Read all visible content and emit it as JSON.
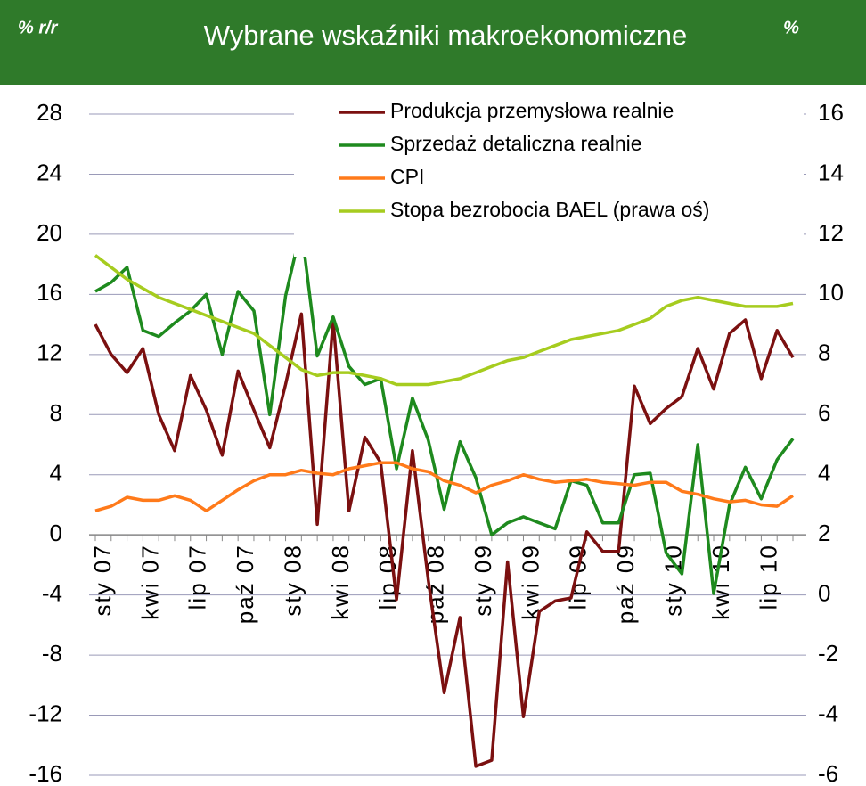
{
  "chart_data": {
    "type": "line",
    "title": "Wybrane wskaźniki makroekonomiczne",
    "ylabel": "% r/r",
    "y2label": "%",
    "categories": [
      "sty 07",
      null,
      null,
      "kwi 07",
      null,
      null,
      "lip 07",
      null,
      null,
      "paź 07",
      null,
      null,
      "sty 08",
      null,
      null,
      "kwi 08",
      null,
      null,
      "lip 08",
      null,
      null,
      "paź 08",
      null,
      null,
      "sty 09",
      null,
      null,
      "kwi 09",
      null,
      null,
      "lip 09",
      null,
      null,
      "paź 09",
      null,
      null,
      "sty 10",
      null,
      null,
      "kwi 10",
      null,
      null,
      "lip 10",
      null,
      null
    ],
    "series": [
      {
        "name": "Produkcja przemysłowa realnie",
        "color": "#7b1010",
        "values": [
          14,
          12,
          10.8,
          12.4,
          8,
          5.6,
          10.6,
          8.3,
          5.3,
          10.9,
          8.3,
          5.8,
          10,
          14.7,
          0.7,
          14.3,
          1.6,
          6.5,
          4.8,
          -4.3,
          5.6,
          -3,
          -10.5,
          -5.5,
          -15.4,
          -15,
          -1.8,
          -12.1,
          -5.1,
          -4.4,
          -4.2,
          0.2,
          -1.1,
          -1.1,
          9.9,
          7.4,
          8.4,
          9.2,
          12.4,
          9.7,
          13.4,
          14.3,
          10.4,
          13.6,
          11.8
        ]
      },
      {
        "name": "Sprzedaż detaliczna realnie",
        "color": "#1e8a1e",
        "values": [
          16.2,
          16.8,
          17.8,
          13.6,
          13.2,
          14.1,
          14.9,
          16,
          12,
          16.2,
          14.9,
          8,
          15.9,
          20.4,
          11.9,
          14.5,
          11.2,
          10,
          10.4,
          4.4,
          9.1,
          6.3,
          1.7,
          6.2,
          3.8,
          0,
          0.8,
          1.2,
          0.8,
          0.4,
          3.6,
          3.3,
          0.8,
          0.8,
          4,
          4.1,
          -1.2,
          -2.6,
          6,
          -3.9,
          2,
          4.5,
          2.4,
          5,
          6.4
        ]
      },
      {
        "name": "CPI",
        "color": "#ff7a1a",
        "values": [
          1.6,
          1.9,
          2.5,
          2.3,
          2.3,
          2.6,
          2.3,
          1.6,
          2.3,
          3.0,
          3.6,
          4.0,
          4.0,
          4.3,
          4.1,
          4.0,
          4.4,
          4.6,
          4.8,
          4.8,
          4.4,
          4.2,
          3.6,
          3.3,
          2.8,
          3.3,
          3.6,
          4.0,
          3.7,
          3.5,
          3.6,
          3.7,
          3.5,
          3.4,
          3.3,
          3.5,
          3.5,
          2.9,
          2.7,
          2.4,
          2.2,
          2.3,
          2.0,
          1.9,
          2.6
        ]
      },
      {
        "name": "Stopa bezrobocia BAEL (prawa oś)",
        "color": "#a6cc1f",
        "axis": "y2",
        "values": [
          11.3,
          10.9,
          10.5,
          10.2,
          9.9,
          9.7,
          9.5,
          9.3,
          9.1,
          8.9,
          8.7,
          8.3,
          7.9,
          7.5,
          7.3,
          7.4,
          7.4,
          7.3,
          7.2,
          7.0,
          7.0,
          7.0,
          7.1,
          7.2,
          7.4,
          7.6,
          7.8,
          7.9,
          8.1,
          8.3,
          8.5,
          8.6,
          8.7,
          8.8,
          9.0,
          9.2,
          9.6,
          9.8,
          9.9,
          9.8,
          9.7,
          9.6,
          9.6,
          9.6,
          9.7
        ]
      }
    ],
    "ylim": [
      -16,
      28
    ],
    "yticks": [
      -16,
      -12,
      -8,
      -4,
      0,
      4,
      8,
      12,
      16,
      20,
      24,
      28
    ],
    "y2lim": [
      -6,
      16
    ],
    "y2ticks": [
      -6,
      -4,
      -2,
      0,
      2,
      4,
      6,
      8,
      10,
      12,
      14,
      16
    ],
    "grid": true,
    "legend": "top-right"
  }
}
